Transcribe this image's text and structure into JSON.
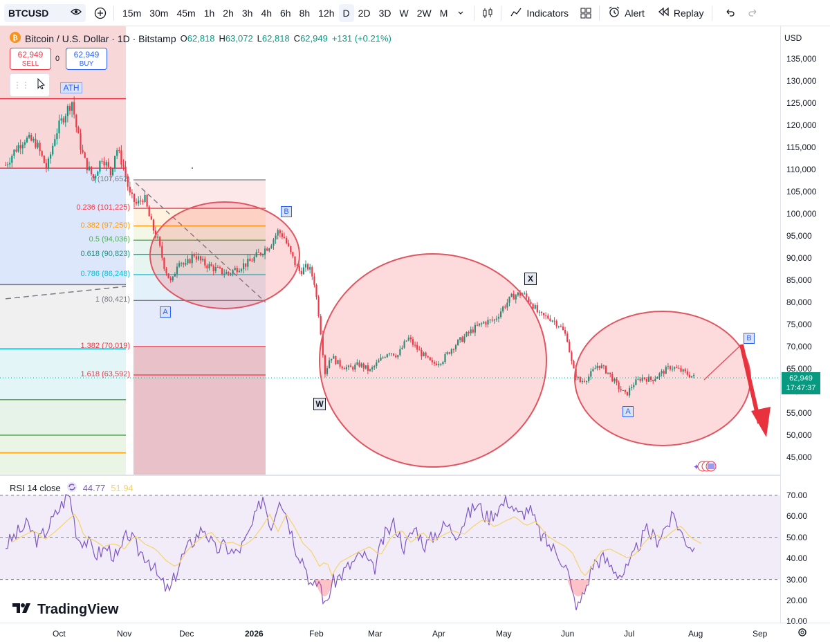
{
  "toolbar": {
    "symbol": "BTCUSD",
    "intervals": [
      "15m",
      "30m",
      "45m",
      "1h",
      "2h",
      "3h",
      "4h",
      "6h",
      "8h",
      "12h",
      "D",
      "2D",
      "3D",
      "W",
      "2W",
      "M"
    ],
    "active_interval": "D",
    "indicators_label": "Indicators",
    "alert_label": "Alert",
    "replay_label": "Replay"
  },
  "legend": {
    "title": "Bitcoin / U.S. Dollar · 1D · Bitstamp",
    "o_label": "O",
    "o": "62,818",
    "h_label": "H",
    "h": "63,072",
    "l_label": "L",
    "l": "62,818",
    "c_label": "C",
    "c": "62,949",
    "change": "+131 (+0.21%)"
  },
  "trade": {
    "sell_price": "62,949",
    "sell_label": "SELL",
    "spread": "0",
    "buy_price": "62,949",
    "buy_label": "BUY"
  },
  "labels": {
    "ath": "ATH",
    "wave_a1": "A",
    "wave_b1": "B",
    "wave_x": "X",
    "wave_w": "W",
    "wave_a2": "A",
    "wave_b2": "B"
  },
  "fib_levels": [
    {
      "label": "0 (107,652)",
      "color": "#787b86",
      "price": 107652
    },
    {
      "label": "0.236 (101,225)",
      "color": "#f23645",
      "price": 101225
    },
    {
      "label": "0.382 (97,250)",
      "color": "#ff9800",
      "price": 97250
    },
    {
      "label": "0.5 (94,036)",
      "color": "#4caf50",
      "price": 94036
    },
    {
      "label": "0.618 (90,823)",
      "color": "#089981",
      "price": 90823
    },
    {
      "label": "0.786 (86,248)",
      "color": "#00bcd4",
      "price": 86248
    },
    {
      "label": "1 (80,421)",
      "color": "#787b86",
      "price": 80421
    },
    {
      "label": "1.382 (70,019)",
      "color": "#f23645",
      "price": 70019
    },
    {
      "label": "1.618 (63,592)",
      "color": "#f23645",
      "price": 63592
    }
  ],
  "price_scale": {
    "currency": "USD",
    "ticks": [
      "135,000",
      "130,000",
      "125,000",
      "120,000",
      "115,000",
      "110,000",
      "105,000",
      "100,000",
      "95,000",
      "90,000",
      "85,000",
      "80,000",
      "75,000",
      "70,000",
      "65,000",
      "60,000",
      "55,000",
      "50,000",
      "45,000"
    ],
    "last_price": "62,949",
    "countdown": "17:47:37"
  },
  "rsi": {
    "title": "RSI 14 close",
    "value": "44.77",
    "ma_value": "51.94",
    "ticks": [
      "70.00",
      "60.00",
      "50.00",
      "40.00",
      "30.00",
      "20.00",
      "10.00"
    ]
  },
  "x_axis": [
    "Oct",
    "Nov",
    "Dec",
    "2026",
    "Feb",
    "Mar",
    "Apr",
    "May",
    "Jun",
    "Jul",
    "Aug",
    "Sep"
  ],
  "brand": "TradingView",
  "colors": {
    "up": "#089981",
    "down": "#f23645",
    "accent": "#2962ff",
    "ellipse": "#e05560"
  },
  "chart_data": {
    "type": "candlestick",
    "series_close_approx": [
      {
        "x": "Oct",
        "y": 116000
      },
      {
        "x": "Oct (ATH)",
        "y": 125000
      },
      {
        "x": "Nov",
        "y": 108000
      },
      {
        "x": "Nov",
        "y": 96000
      },
      {
        "x": "Dec",
        "y": 90000
      },
      {
        "x": "2026",
        "y": 92000
      },
      {
        "x": "Jan",
        "y": 97000
      },
      {
        "x": "Feb",
        "y": 68000
      },
      {
        "x": "Feb",
        "y": 62000
      },
      {
        "x": "Mar",
        "y": 67000
      },
      {
        "x": "Apr",
        "y": 68000
      },
      {
        "x": "May",
        "y": 82000
      },
      {
        "x": "Jun",
        "y": 63000
      },
      {
        "x": "Jul",
        "y": 59000
      },
      {
        "x": "Aug",
        "y": 62949
      }
    ],
    "ylim": [
      45000,
      135000
    ]
  }
}
